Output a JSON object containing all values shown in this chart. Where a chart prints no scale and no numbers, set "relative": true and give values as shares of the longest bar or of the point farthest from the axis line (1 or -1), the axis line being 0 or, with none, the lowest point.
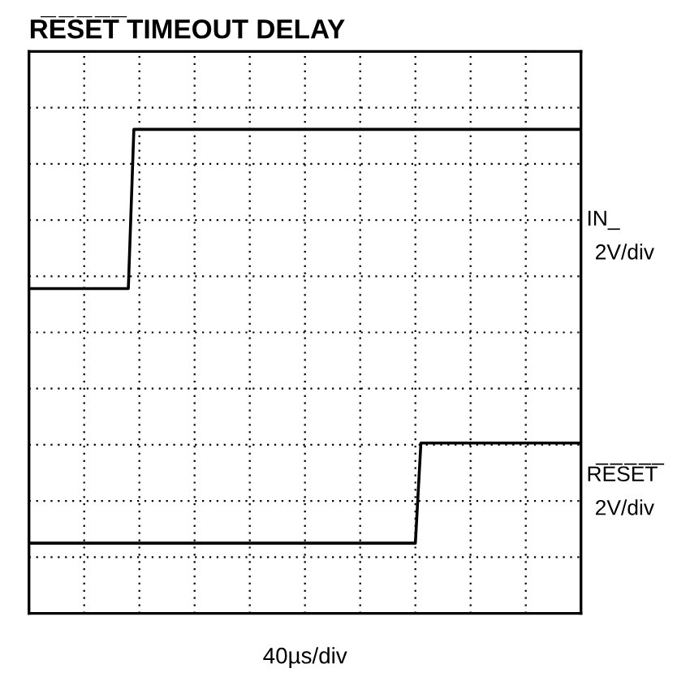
{
  "chart_data": {
    "type": "line",
    "title": "R̅E̅S̅E̅T̅ TIMEOUT DELAY",
    "relative": true,
    "grid": true,
    "line_style": "solid",
    "categories": [
      null,
      null,
      null,
      null,
      null,
      null,
      null,
      null,
      null,
      null,
      null,
      null,
      null,
      null,
      null,
      null,
      null,
      null,
      null,
      null,
      null,
      null,
      null,
      null,
      null,
      null,
      null,
      null,
      null,
      null,
      null,
      null,
      null,
      null,
      null,
      null,
      null,
      null,
      null,
      null,
      null,
      null,
      null,
      null,
      null,
      null,
      null,
      null,
      null,
      null,
      null,
      null,
      null,
      null,
      null,
      null,
      null,
      null,
      null,
      null,
      null,
      null,
      null,
      null,
      null,
      null,
      null,
      null,
      null,
      null,
      null,
      null,
      null,
      null,
      null,
      null,
      null,
      null,
      null,
      null,
      null,
      null,
      null,
      null,
      null,
      null,
      null,
      null,
      null,
      null,
      null,
      null,
      null,
      null,
      null,
      null,
      null,
      null,
      null,
      null,
      null
    ],
    "series": [
      {
        "name": "IN_",
        "color": "#000000",
        "values": [
          0.671,
          0.671,
          0.671,
          0.671,
          0.671,
          0.671,
          0.671,
          0.671,
          0.671,
          0.671,
          0.671,
          0.671,
          0.671,
          0.671,
          0.671,
          0.671,
          0.671,
          0.671,
          0.671,
          1,
          1,
          1,
          1,
          1,
          1,
          1,
          1,
          1,
          1,
          1,
          1,
          1,
          1,
          1,
          1,
          1,
          1,
          1,
          1,
          1,
          1,
          1,
          1,
          1,
          1,
          1,
          1,
          1,
          1,
          1,
          1,
          1,
          1,
          1,
          1,
          1,
          1,
          1,
          1,
          1,
          1,
          1,
          1,
          1,
          1,
          1,
          1,
          1,
          1,
          1,
          1,
          1,
          1,
          1,
          1,
          1,
          1,
          1,
          1,
          1,
          1,
          1,
          1,
          1,
          1,
          1,
          1,
          1,
          1,
          1,
          1,
          1,
          1,
          1,
          1,
          1,
          1,
          1,
          1,
          1,
          1
        ]
      },
      {
        "name": "R̅E̅S̅E̅T̅",
        "color": "#000000",
        "values": [
          0.145,
          0.145,
          0.145,
          0.145,
          0.145,
          0.145,
          0.145,
          0.145,
          0.145,
          0.145,
          0.145,
          0.145,
          0.145,
          0.145,
          0.145,
          0.145,
          0.145,
          0.145,
          0.145,
          0.145,
          0.145,
          0.145,
          0.145,
          0.145,
          0.145,
          0.145,
          0.145,
          0.145,
          0.145,
          0.145,
          0.145,
          0.145,
          0.145,
          0.145,
          0.145,
          0.145,
          0.145,
          0.145,
          0.145,
          0.145,
          0.145,
          0.145,
          0.145,
          0.145,
          0.145,
          0.145,
          0.145,
          0.145,
          0.145,
          0.145,
          0.145,
          0.145,
          0.145,
          0.145,
          0.145,
          0.145,
          0.145,
          0.145,
          0.145,
          0.145,
          0.145,
          0.145,
          0.145,
          0.145,
          0.145,
          0.145,
          0.145,
          0.145,
          0.145,
          0.145,
          0.145,
          0.352,
          0.352,
          0.352,
          0.352,
          0.352,
          0.352,
          0.352,
          0.352,
          0.352,
          0.352,
          0.352,
          0.352,
          0.352,
          0.352,
          0.352,
          0.352,
          0.352,
          0.352,
          0.352,
          0.352,
          0.352,
          0.352,
          0.352,
          0.352,
          0.352,
          0.352,
          0.352,
          0.352,
          0.352,
          0.352
        ]
      }
    ],
    "annotations": [
      "2V/div",
      "2V/div",
      "40µs/div"
    ]
  }
}
